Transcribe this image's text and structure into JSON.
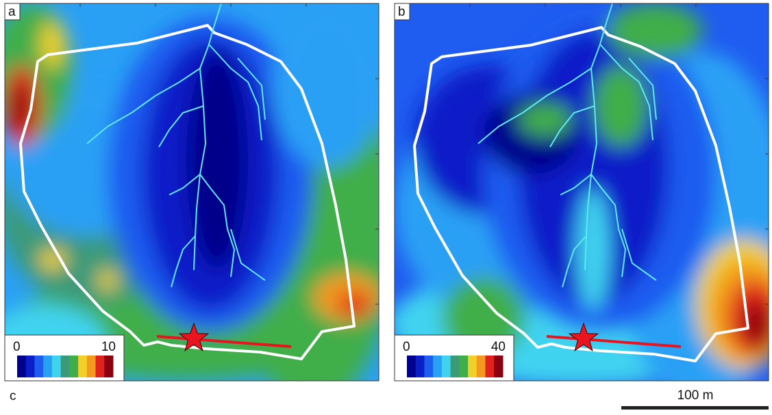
{
  "panels": [
    {
      "label": "a",
      "legend": {
        "min": 0,
        "max": 10
      }
    },
    {
      "label": "b",
      "legend": {
        "min": 0,
        "max": 40
      }
    }
  ],
  "caption_label": "c",
  "scale_bar": "100 m"
}
